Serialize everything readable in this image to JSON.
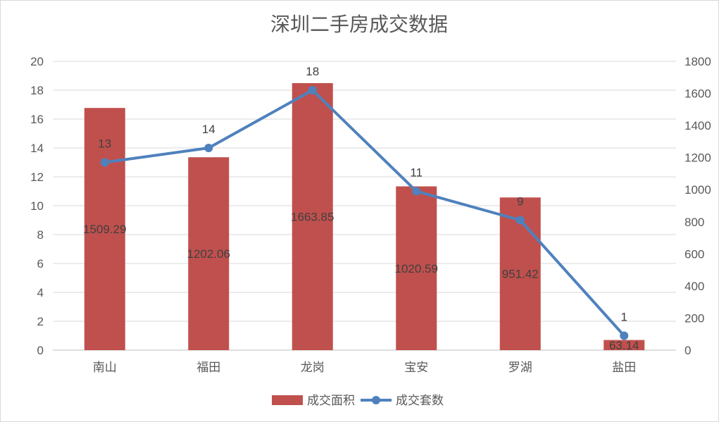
{
  "chart_data": {
    "type": "bar+line",
    "title": "深圳二手房成交数据",
    "categories": [
      "南山",
      "福田",
      "龙岗",
      "宝安",
      "罗湖",
      "盐田"
    ],
    "series": [
      {
        "name": "成交面积",
        "type": "bar",
        "axis": "right",
        "values": [
          1509.29,
          1202.06,
          1663.85,
          1020.59,
          951.42,
          63.14
        ],
        "color": "#c0504d"
      },
      {
        "name": "成交套数",
        "type": "line",
        "axis": "left",
        "values": [
          13,
          14,
          18,
          11,
          9,
          1
        ],
        "color": "#4f81bd"
      }
    ],
    "y_left": {
      "min": 0,
      "max": 20,
      "ticks": [
        0,
        2,
        4,
        6,
        8,
        10,
        12,
        14,
        16,
        18,
        20
      ]
    },
    "y_right": {
      "min": 0,
      "max": 1800,
      "ticks": [
        0,
        200,
        400,
        600,
        800,
        1000,
        1200,
        1400,
        1600,
        1800
      ]
    },
    "grid": true,
    "legend_position": "bottom"
  }
}
